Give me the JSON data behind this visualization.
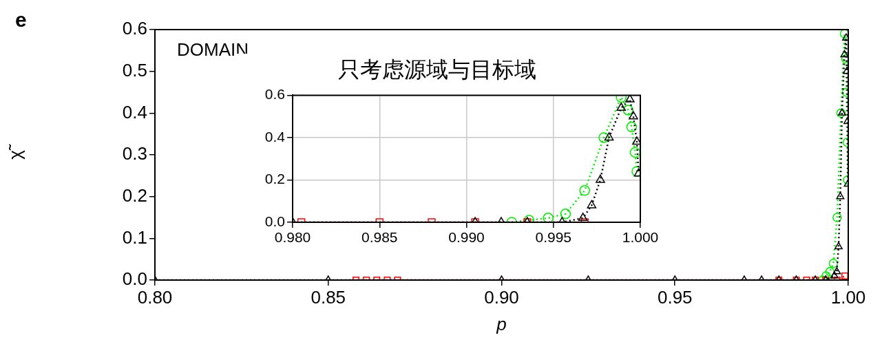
{
  "chart_data": [
    {
      "type": "line",
      "xlabel": "p",
      "ylabel": "χ̃",
      "annotations": [
        "e",
        "DOMAIN"
      ],
      "xlim": [
        0.8,
        1.0
      ],
      "ylim": [
        0,
        0.6
      ],
      "xticks": [
        {
          "value": 0.8,
          "label": "0.80"
        },
        {
          "value": 0.85,
          "label": "0.85"
        },
        {
          "value": 0.9,
          "label": "0.90"
        },
        {
          "value": 0.95,
          "label": "0.95"
        },
        {
          "value": 1.0,
          "label": "1.00"
        }
      ],
      "yticks": [
        {
          "value": 0,
          "label": "0.0"
        },
        0.1,
        0.2,
        0.3,
        0.4,
        0.5,
        0.6
      ],
      "grid": false,
      "legend": false,
      "line_style": "dotted",
      "series": [
        {
          "color": "#000000",
          "marker": "triangle",
          "x": [
            0.8,
            0.85,
            0.9,
            0.925,
            0.95,
            0.97,
            0.975,
            0.98,
            0.985,
            0.9905,
            0.9935,
            0.996,
            0.9967,
            0.9972,
            0.9977,
            0.9982,
            0.9989,
            0.9994,
            0.9996,
            0.9998,
            0.9999
          ],
          "values": [
            0,
            0,
            0,
            0,
            0,
            0,
            0,
            0,
            0,
            0,
            0,
            0.01,
            0.02,
            0.08,
            0.2,
            0.4,
            0.54,
            0.58,
            0.5,
            0.38,
            0.23
          ]
        },
        {
          "color": "#ff0000",
          "marker": "square",
          "x": [
            0.858,
            0.861,
            0.864,
            0.867,
            0.87,
            0.98,
            0.985,
            0.988,
            0.9905,
            0.9935,
            0.9968,
            0.999
          ],
          "values": [
            0,
            0,
            0,
            0,
            0,
            0,
            0,
            0,
            0,
            0,
            0,
            0.01
          ]
        },
        {
          "color": "#00ee00",
          "marker": "circle",
          "x": [
            0.9926,
            0.9936,
            0.9947,
            0.9957,
            0.9968,
            0.9979,
            0.9989,
            0.9993,
            0.9995,
            0.9997,
            0.9998
          ],
          "values": [
            0,
            0.01,
            0.02,
            0.04,
            0.15,
            0.4,
            0.59,
            0.53,
            0.45,
            0.33,
            0.24
          ]
        }
      ]
    },
    {
      "type": "line",
      "title": "只考虑源域与目标域",
      "xlim": [
        0.98,
        1.0
      ],
      "ylim": [
        0,
        0.6
      ],
      "xticks": [
        {
          "value": 0.98,
          "label": "0.980"
        },
        {
          "value": 0.985,
          "label": "0.985"
        },
        {
          "value": 0.99,
          "label": "0.990"
        },
        {
          "value": 0.995,
          "label": "0.995"
        },
        {
          "value": 1.0,
          "label": "1.000"
        }
      ],
      "yticks": [
        {
          "value": 0,
          "label": "0.0"
        },
        0.2,
        0.4,
        0.6
      ],
      "grid": true,
      "legend": false,
      "line_style": "dotted",
      "series": [
        {
          "color": "#000000",
          "marker": "triangle",
          "x": [
            0.98,
            0.9905,
            0.992,
            0.9935,
            0.9955,
            0.9967,
            0.9972,
            0.9977,
            0.9982,
            0.9989,
            0.9994,
            0.9996,
            0.9998,
            0.9999
          ],
          "values": [
            0,
            0,
            0,
            0,
            0,
            0.02,
            0.08,
            0.2,
            0.4,
            0.54,
            0.58,
            0.5,
            0.38,
            0.23
          ]
        },
        {
          "color": "#ff0000",
          "marker": "square",
          "x": [
            0.9805,
            0.985,
            0.988,
            0.9905,
            0.9935,
            0.9968
          ],
          "values": [
            0,
            0,
            0,
            0,
            0,
            0
          ]
        },
        {
          "color": "#00ee00",
          "marker": "circle",
          "x": [
            0.9926,
            0.9936,
            0.9947,
            0.9957,
            0.9968,
            0.9979,
            0.9989,
            0.9993,
            0.9995,
            0.9997,
            0.9998
          ],
          "values": [
            0,
            0.01,
            0.02,
            0.04,
            0.15,
            0.4,
            0.59,
            0.53,
            0.45,
            0.33,
            0.24
          ]
        }
      ]
    }
  ]
}
